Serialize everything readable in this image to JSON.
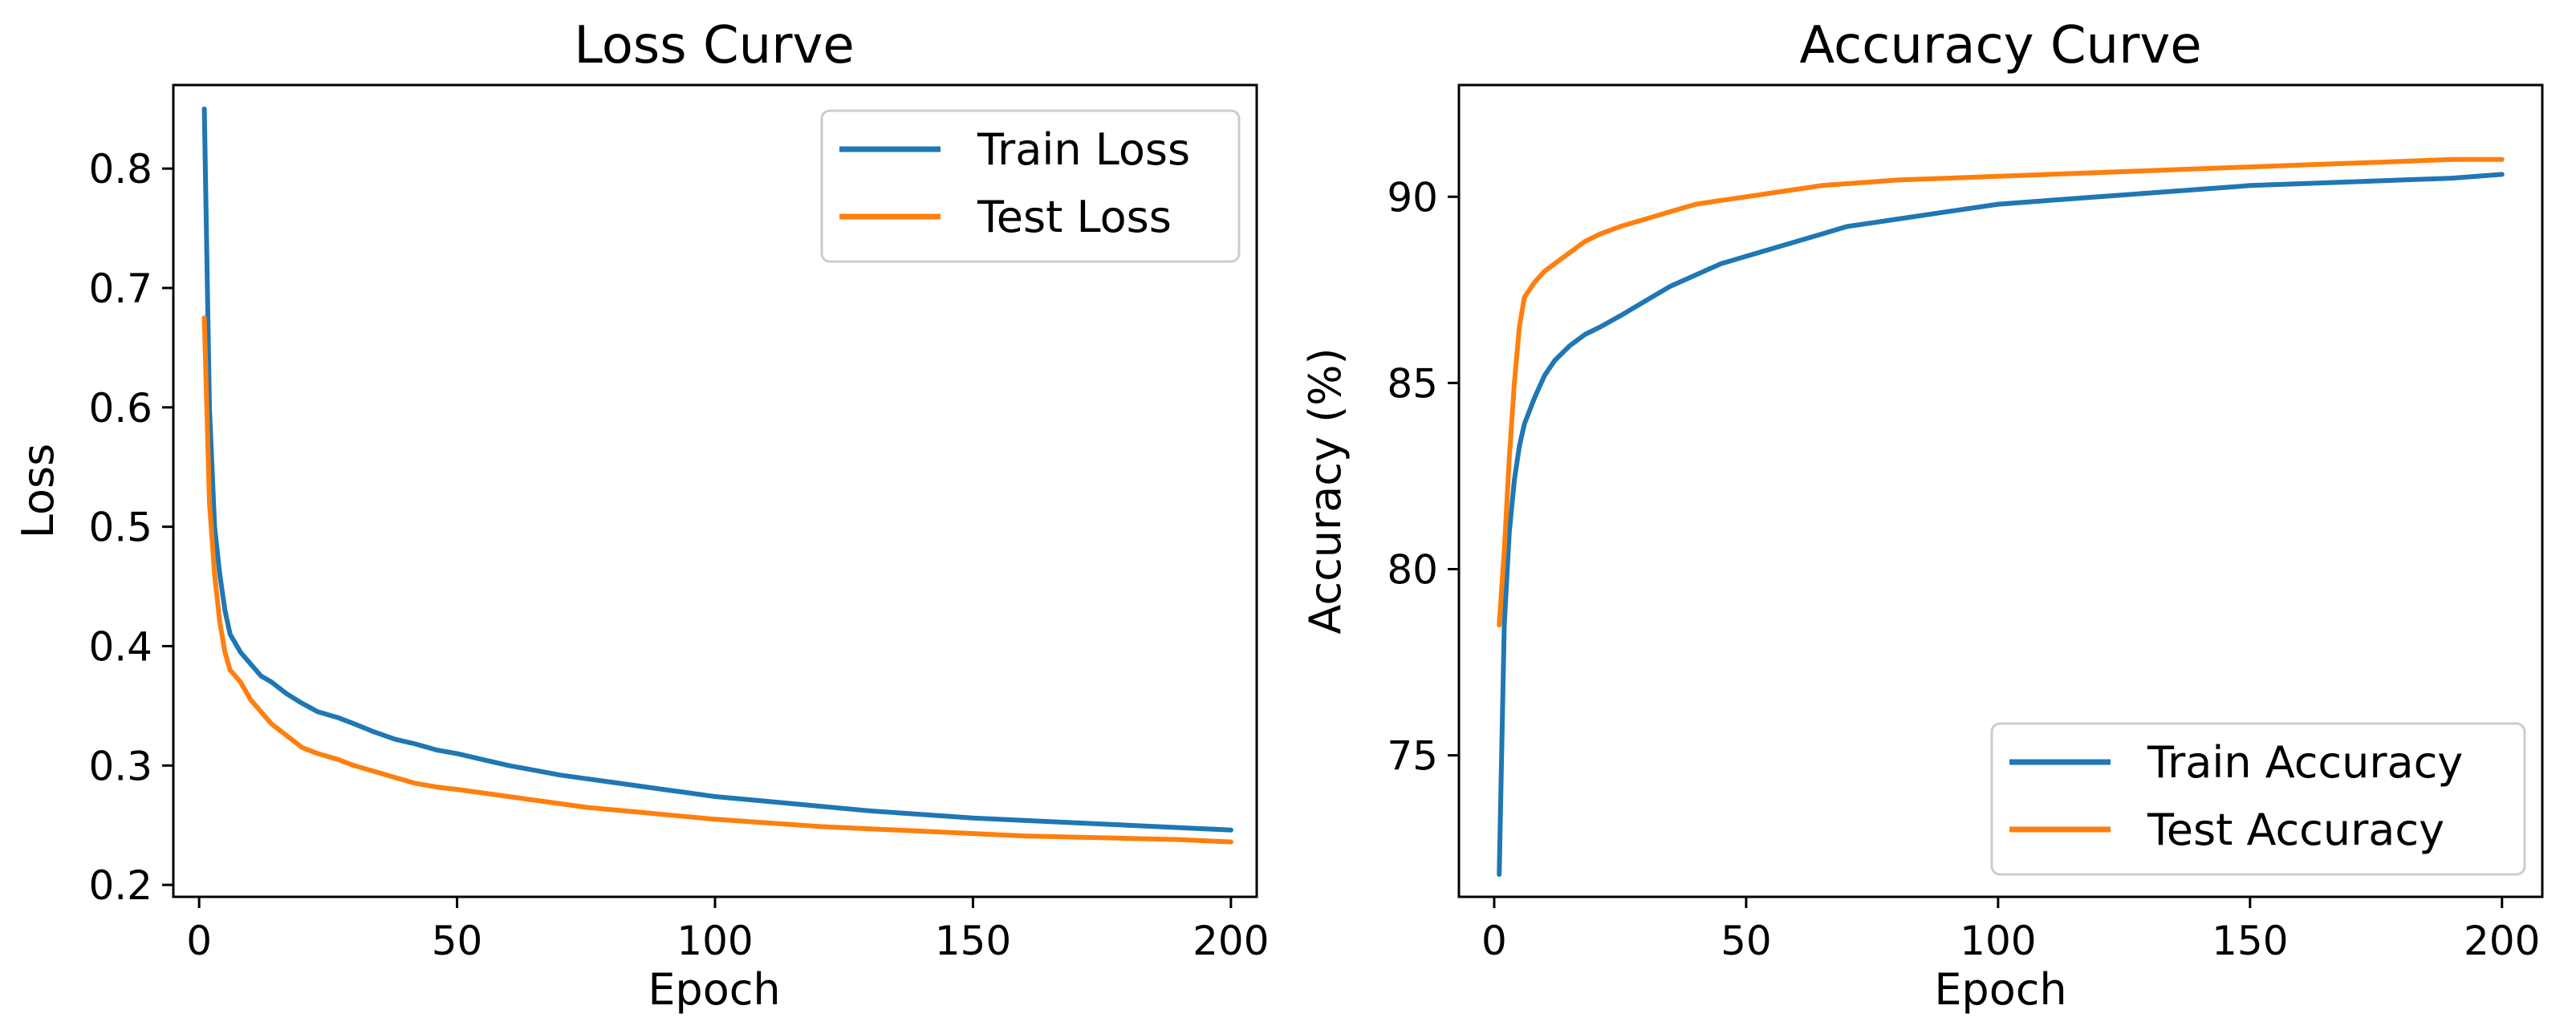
{
  "figure": {
    "chart_data": [
      {
        "type": "line",
        "title": "Loss Curve",
        "xlabel": "Epoch",
        "ylabel": "Loss",
        "xlim": [
          -5,
          205
        ],
        "ylim": [
          0.19,
          0.87
        ],
        "xticks": [
          0,
          50,
          100,
          150,
          200
        ],
        "yticks": [
          0.2,
          0.3,
          0.4,
          0.5,
          0.6,
          0.7,
          0.8
        ],
        "ytick_labels": [
          "0.2",
          "0.3",
          "0.4",
          "0.5",
          "0.6",
          "0.7",
          "0.8"
        ],
        "grid": false,
        "legend_position": "upper right",
        "series": [
          {
            "name": "Train Loss",
            "color": "#1f77b4",
            "x": [
              1,
              2,
              3,
              4,
              5,
              6,
              8,
              10,
              12,
              14,
              17,
              20,
              23,
              27,
              30,
              34,
              38,
              42,
              46,
              50,
              55,
              60,
              65,
              70,
              75,
              80,
              85,
              90,
              95,
              100,
              110,
              120,
              130,
              140,
              150,
              160,
              170,
              180,
              190,
              195,
              200
            ],
            "values": [
              0.85,
              0.6,
              0.5,
              0.46,
              0.43,
              0.41,
              0.395,
              0.385,
              0.375,
              0.37,
              0.36,
              0.352,
              0.345,
              0.34,
              0.335,
              0.328,
              0.322,
              0.318,
              0.313,
              0.31,
              0.305,
              0.3,
              0.296,
              0.292,
              0.289,
              0.286,
              0.283,
              0.28,
              0.277,
              0.274,
              0.27,
              0.266,
              0.262,
              0.259,
              0.256,
              0.254,
              0.252,
              0.25,
              0.248,
              0.247,
              0.246
            ]
          },
          {
            "name": "Test Loss",
            "color": "#ff7f0e",
            "x": [
              1,
              2,
              3,
              4,
              5,
              6,
              8,
              10,
              12,
              14,
              17,
              20,
              23,
              27,
              30,
              34,
              38,
              42,
              46,
              50,
              55,
              60,
              65,
              70,
              75,
              80,
              85,
              90,
              95,
              100,
              110,
              120,
              130,
              140,
              150,
              160,
              170,
              180,
              190,
              195,
              200
            ],
            "values": [
              0.675,
              0.52,
              0.46,
              0.42,
              0.395,
              0.38,
              0.37,
              0.355,
              0.345,
              0.335,
              0.325,
              0.315,
              0.31,
              0.305,
              0.3,
              0.295,
              0.29,
              0.285,
              0.282,
              0.28,
              0.277,
              0.274,
              0.271,
              0.268,
              0.265,
              0.263,
              0.261,
              0.259,
              0.257,
              0.255,
              0.252,
              0.249,
              0.247,
              0.245,
              0.243,
              0.241,
              0.24,
              0.239,
              0.238,
              0.237,
              0.236
            ]
          }
        ]
      },
      {
        "type": "line",
        "title": "Accuracy Curve",
        "xlabel": "Epoch",
        "ylabel": "Accuracy (%)",
        "xlim": [
          -7,
          208
        ],
        "ylim": [
          71.2,
          93.0
        ],
        "xticks": [
          0,
          50,
          100,
          150,
          200
        ],
        "yticks": [
          75,
          80,
          85,
          90
        ],
        "ytick_labels": [
          "75",
          "80",
          "85",
          "90"
        ],
        "grid": false,
        "legend_position": "lower right",
        "series": [
          {
            "name": "Train Accuracy",
            "color": "#1f77b4",
            "x": [
              1,
              2,
              3,
              4,
              5,
              6,
              8,
              10,
              12,
              15,
              18,
              21,
              25,
              30,
              35,
              40,
              45,
              50,
              55,
              60,
              65,
              70,
              75,
              80,
              90,
              100,
              110,
              120,
              130,
              140,
              150,
              160,
              170,
              180,
              190,
              195,
              200
            ],
            "values": [
              71.8,
              78.5,
              81.0,
              82.4,
              83.3,
              83.9,
              84.6,
              85.2,
              85.6,
              86.0,
              86.3,
              86.5,
              86.8,
              87.2,
              87.6,
              87.9,
              88.2,
              88.4,
              88.6,
              88.8,
              89.0,
              89.2,
              89.3,
              89.4,
              89.6,
              89.8,
              89.9,
              90.0,
              90.1,
              90.2,
              90.3,
              90.35,
              90.4,
              90.45,
              90.5,
              90.55,
              90.6
            ]
          },
          {
            "name": "Test Accuracy",
            "color": "#ff7f0e",
            "x": [
              1,
              2,
              3,
              4,
              5,
              6,
              8,
              10,
              12,
              15,
              18,
              21,
              25,
              30,
              35,
              40,
              45,
              50,
              55,
              60,
              65,
              70,
              75,
              80,
              90,
              100,
              110,
              120,
              130,
              140,
              150,
              160,
              170,
              180,
              190,
              195,
              200
            ],
            "values": [
              78.5,
              80.5,
              83.0,
              85.0,
              86.5,
              87.3,
              87.7,
              88.0,
              88.2,
              88.5,
              88.8,
              89.0,
              89.2,
              89.4,
              89.6,
              89.8,
              89.9,
              90.0,
              90.1,
              90.2,
              90.3,
              90.35,
              90.4,
              90.45,
              90.5,
              90.55,
              90.6,
              90.65,
              90.7,
              90.75,
              90.8,
              90.85,
              90.9,
              90.95,
              91.0,
              91.0,
              91.0
            ]
          }
        ]
      }
    ]
  }
}
